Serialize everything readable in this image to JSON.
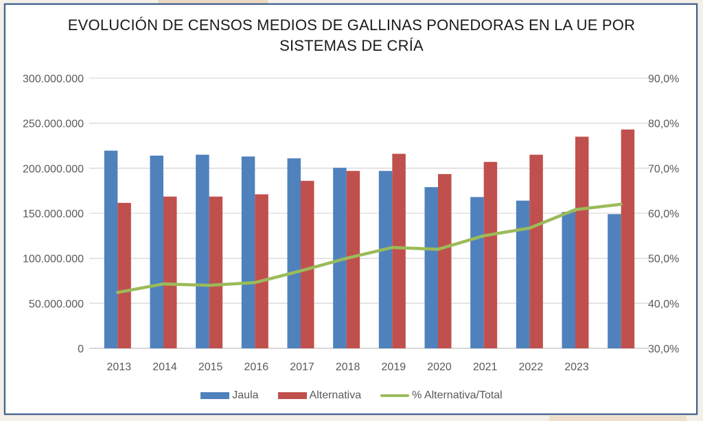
{
  "chart_data": {
    "type": "bar",
    "title": "EVOLUCIÓN DE CENSOS MEDIOS DE GALLINAS PONEDORAS EN LA UE POR SISTEMAS DE CRÍA",
    "title_lines": [
      "EVOLUCIÓN DE CENSOS MEDIOS DE GALLINAS PONEDORAS EN LA UE POR",
      "SISTEMAS DE CRÍA"
    ],
    "categories": [
      "2013",
      "2014",
      "2015",
      "2016",
      "2017",
      "2018",
      "2019",
      "2020",
      "2021",
      "2022",
      "2023",
      ""
    ],
    "series": [
      {
        "name": "Jaula",
        "type": "bar",
        "axis": "left",
        "color": "#4f81bd",
        "values": [
          219500000,
          214000000,
          215000000,
          213000000,
          211000000,
          200500000,
          197000000,
          179000000,
          168000000,
          164000000,
          151500000,
          149000000
        ]
      },
      {
        "name": "Alternativa",
        "type": "bar",
        "axis": "left",
        "color": "#c0504d",
        "values": [
          161500000,
          168500000,
          168500000,
          171000000,
          186000000,
          197000000,
          216000000,
          193500000,
          207000000,
          215000000,
          235000000,
          243000000
        ]
      },
      {
        "name": "% Alternativa/Total",
        "type": "line",
        "axis": "right",
        "color": "#9bbb59",
        "values": [
          42.4,
          44.3,
          44.0,
          44.6,
          47.2,
          50.0,
          52.4,
          52.0,
          55.0,
          56.7,
          60.8,
          62.0
        ]
      }
    ],
    "y_left": {
      "ylim": [
        0,
        300000000
      ],
      "ticks": [
        0,
        50000000,
        100000000,
        150000000,
        200000000,
        250000000,
        300000000
      ],
      "tick_labels": [
        "0",
        "50.000.000",
        "100.000.000",
        "150.000.000",
        "200.000.000",
        "250.000.000",
        "300.000.000"
      ]
    },
    "y_right": {
      "ylim": [
        30,
        90
      ],
      "ticks": [
        30,
        40,
        50,
        60,
        70,
        80,
        90
      ],
      "tick_labels": [
        "30,0%",
        "40,0%",
        "50,0%",
        "60,0%",
        "70,0%",
        "80,0%",
        "90,0%"
      ]
    },
    "xlabel": "",
    "ylabel": "",
    "grid": true,
    "legend_position": "bottom"
  }
}
